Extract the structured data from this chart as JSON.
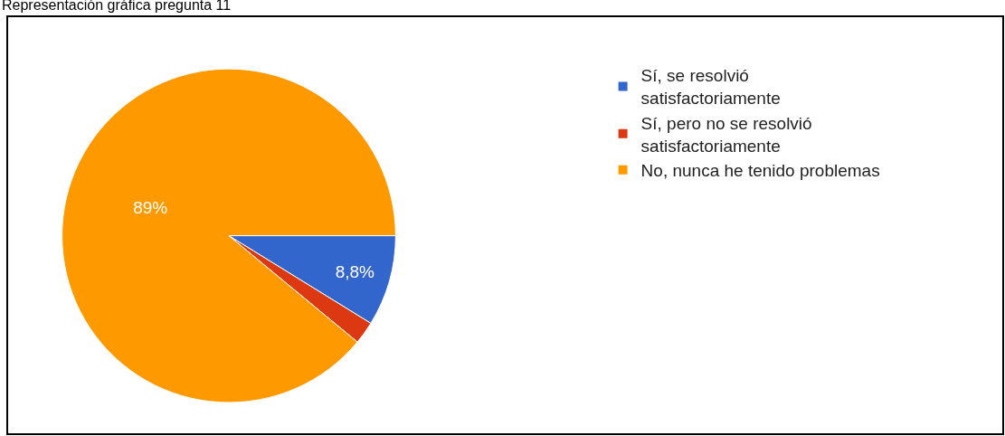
{
  "chart_data": {
    "type": "pie",
    "title": "Representación gráfica pregunta 11",
    "categories": [
      "Sí, se resolvió satisfactoriamente",
      "Sí, pero no se resolvió satisfactoriamente",
      "No, nunca he tenido problemas"
    ],
    "values": [
      8.8,
      2.2,
      89
    ],
    "colors": [
      "#3366cc",
      "#dc3912",
      "#ff9900"
    ],
    "value_labels": [
      "8,8%",
      null,
      "89%"
    ],
    "legend": "right"
  }
}
